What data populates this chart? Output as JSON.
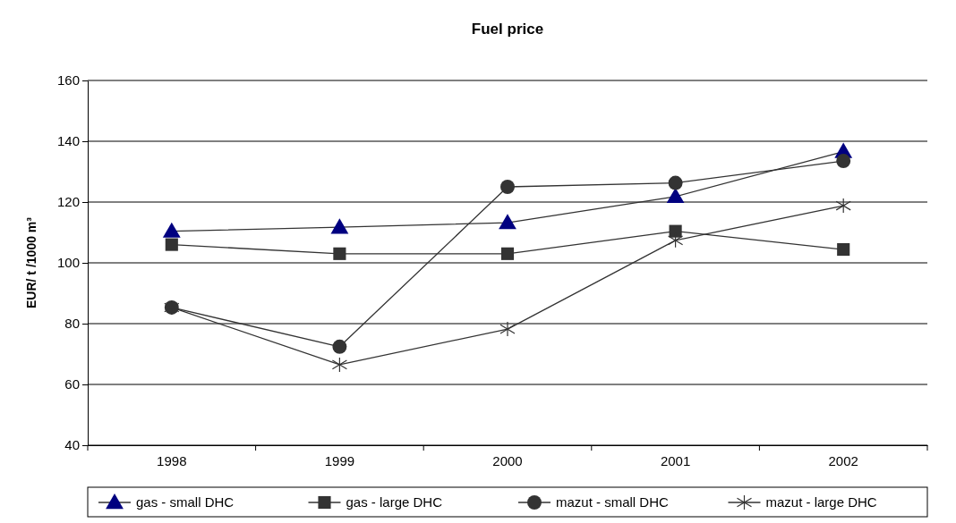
{
  "chart_data": {
    "type": "line",
    "title": "Fuel price",
    "ylabel": "EUR/ t /1000 m³",
    "categories": [
      "1998",
      "1999",
      "2000",
      "2001",
      "2002"
    ],
    "series": [
      {
        "name": "gas  - small DHC",
        "color": "#000080",
        "marker": "triangle",
        "values": [
          110.4,
          111.7,
          113.2,
          121.8,
          136.6
        ]
      },
      {
        "name": "gas - large DHC",
        "color": "#333333",
        "marker": "square",
        "values": [
          106,
          103,
          103,
          110.4,
          104.4
        ]
      },
      {
        "name": "mazut  - small DHC",
        "color": "#333333",
        "marker": "circle",
        "values": [
          85.3,
          72.4,
          125,
          126.3,
          133.5
        ]
      },
      {
        "name": "mazut - large DHC",
        "color": "#333333",
        "marker": "cross",
        "values": [
          85.3,
          66.5,
          78.2,
          107.4,
          118.8
        ]
      }
    ],
    "ylim": [
      40,
      160
    ],
    "yticks": [
      40,
      60,
      80,
      100,
      120,
      140,
      160
    ],
    "grid": "y",
    "legend": "bottom",
    "line_style": "solid"
  }
}
